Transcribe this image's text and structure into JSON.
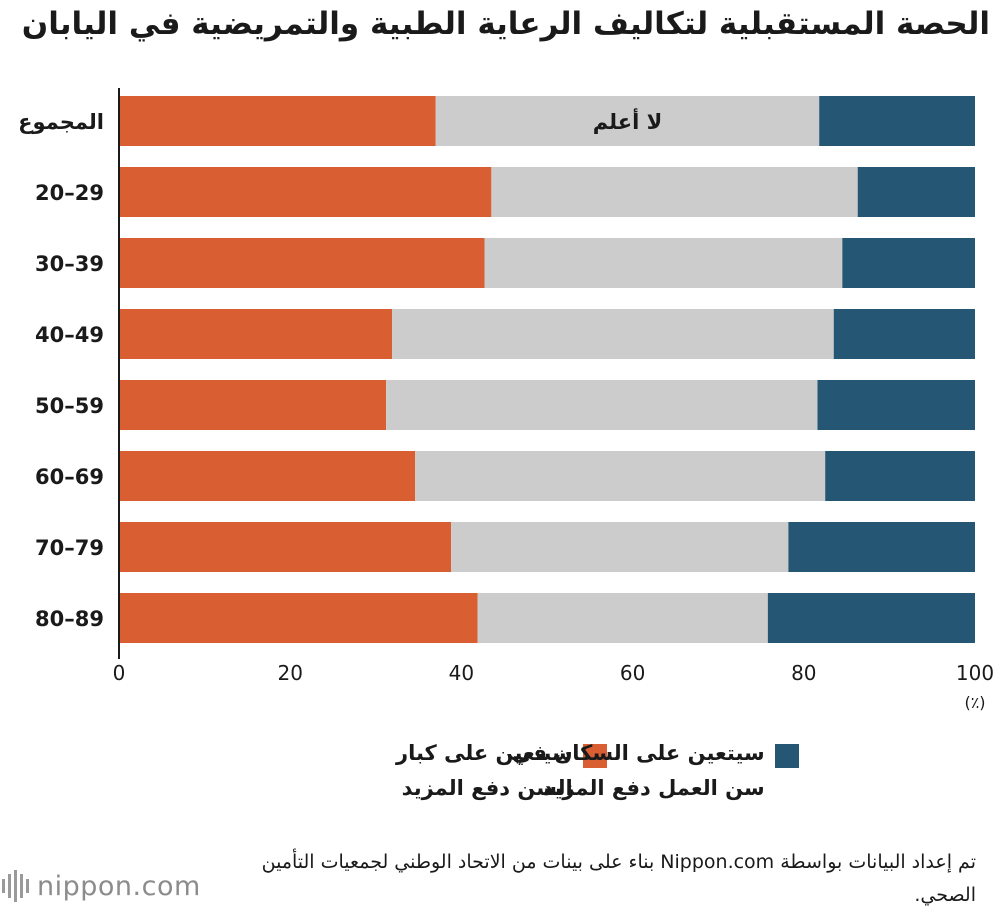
{
  "title": "الحصة المستقبلية لتكاليف الرعاية الطبية والتمريضية في اليابان",
  "chart_data": {
    "type": "bar",
    "orientation": "horizontal",
    "stacked": true,
    "categories": [
      "المجموع",
      "20–29",
      "30–39",
      "40–49",
      "50–59",
      "60–69",
      "70–79",
      "80–89"
    ],
    "series": [
      {
        "name": "سيتعين على كبار السن دفع المزيد",
        "values": [
          37.0,
          43.5,
          42.7,
          31.9,
          31.2,
          34.6,
          38.8,
          41.9
        ],
        "color": "#d95f33"
      },
      {
        "name": "لا أعلم",
        "values": [
          44.8,
          42.8,
          41.8,
          51.6,
          50.4,
          47.9,
          39.4,
          33.9
        ],
        "color": "#cccccc"
      },
      {
        "name": "سيتعين على السكان في سن العمل دفع المزيد",
        "values": [
          18.2,
          13.7,
          15.5,
          16.5,
          18.4,
          17.5,
          21.8,
          24.2
        ],
        "color": "#255673"
      }
    ],
    "xlim": [
      0,
      100
    ],
    "xticks": [
      0,
      20,
      40,
      60,
      80,
      100
    ],
    "unit_label": "(٪)",
    "inline_label": "لا أعلم",
    "grid": false
  },
  "legend": [
    {
      "label": "سيتعين على كبار\nالسن دفع المزيد",
      "color": "#d95f33"
    },
    {
      "label": "سيتعين على السكان في\nسن العمل دفع المزيد",
      "color": "#255673"
    }
  ],
  "source": "تم إعداد البيانات بواسطة Nippon.com بناء على بينات من الاتحاد الوطني لجمعيات التأمين الصحي.",
  "logo": {
    "text": "nippon.com"
  }
}
